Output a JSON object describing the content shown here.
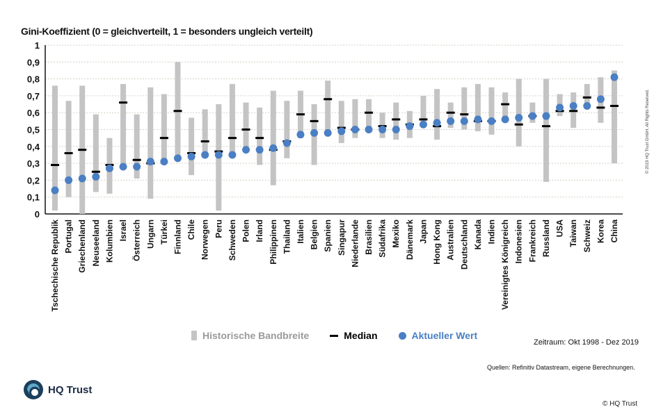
{
  "chart_data": {
    "type": "range-dot",
    "title": "Gini-Koeffizient (0 = gleichverteilt, 1 = besonders ungleich verteilt)",
    "ylim": [
      0,
      1
    ],
    "yticks": [
      "0",
      "0,1",
      "0,2",
      "0,3",
      "0,4",
      "0,5",
      "0,6",
      "0,7",
      "0,8",
      "0,9",
      "1"
    ],
    "grid": true,
    "categories": [
      "Tschechische Republik",
      "Portugal",
      "Griechenland",
      "Neuseeland",
      "Kolumbien",
      "Israel",
      "Österreich",
      "Ungarn",
      "Türkei",
      "Finnland",
      "Chile",
      "Norwegen",
      "Peru",
      "Schweden",
      "Polen",
      "Irland",
      "Philippinen",
      "Thailand",
      "Italien",
      "Belgien",
      "Spanien",
      "Singapur",
      "Niederlande",
      "Brasilien",
      "Südafrika",
      "Mexiko",
      "Dänemark",
      "Japan",
      "Hong Kong",
      "Australien",
      "Deutschland",
      "Kanada",
      "Indien",
      "Vereinigtes Königreich",
      "Indonesien",
      "Frankreich",
      "Russland",
      "USA",
      "Taiwan",
      "Schweiz",
      "Korea",
      "China"
    ],
    "series": [
      {
        "name": "Historische Bandbreite (min)",
        "values": [
          0.02,
          0.1,
          0.0,
          0.13,
          0.12,
          0.29,
          0.21,
          0.09,
          0.3,
          0.33,
          0.23,
          0.34,
          0.02,
          0.35,
          0.37,
          0.29,
          0.17,
          0.33,
          0.45,
          0.29,
          0.48,
          0.42,
          0.45,
          0.49,
          0.45,
          0.44,
          0.45,
          0.52,
          0.44,
          0.51,
          0.5,
          0.49,
          0.47,
          0.55,
          0.4,
          0.54,
          0.19,
          0.58,
          0.51,
          0.64,
          0.54,
          0.3
        ]
      },
      {
        "name": "Historische Bandbreite (max)",
        "values": [
          0.76,
          0.67,
          0.76,
          0.59,
          0.45,
          0.77,
          0.59,
          0.75,
          0.71,
          0.9,
          0.57,
          0.62,
          0.65,
          0.77,
          0.66,
          0.63,
          0.73,
          0.67,
          0.73,
          0.65,
          0.79,
          0.67,
          0.68,
          0.68,
          0.6,
          0.66,
          0.61,
          0.7,
          0.74,
          0.66,
          0.75,
          0.77,
          0.75,
          0.72,
          0.8,
          0.66,
          0.8,
          0.71,
          0.72,
          0.77,
          0.81,
          0.85
        ]
      },
      {
        "name": "Median",
        "values": [
          0.29,
          0.36,
          0.38,
          0.25,
          0.29,
          0.66,
          0.32,
          0.3,
          0.45,
          0.61,
          0.36,
          0.43,
          0.37,
          0.45,
          0.5,
          0.45,
          0.38,
          0.43,
          0.59,
          0.55,
          0.68,
          0.51,
          0.5,
          0.6,
          0.52,
          0.56,
          0.53,
          0.56,
          0.52,
          0.6,
          0.59,
          0.55,
          0.55,
          0.65,
          0.53,
          0.58,
          0.52,
          0.61,
          0.61,
          0.69,
          0.63,
          0.64
        ]
      },
      {
        "name": "Aktueller Wert",
        "values": [
          0.14,
          0.2,
          0.21,
          0.22,
          0.27,
          0.28,
          0.28,
          0.31,
          0.31,
          0.33,
          0.34,
          0.35,
          0.35,
          0.35,
          0.38,
          0.38,
          0.39,
          0.42,
          0.47,
          0.48,
          0.48,
          0.49,
          0.5,
          0.5,
          0.5,
          0.5,
          0.52,
          0.53,
          0.54,
          0.55,
          0.55,
          0.56,
          0.55,
          0.56,
          0.57,
          0.58,
          0.58,
          0.63,
          0.64,
          0.64,
          0.68,
          0.81
        ]
      }
    ],
    "legend": [
      "Historische Bandbreite",
      "Median",
      "Aktueller Wert"
    ],
    "legend_position": "bottom"
  },
  "colors": {
    "band": "#c4c4c4",
    "median": "#000000",
    "current": "#4a7fc4",
    "legend_band_text": "#9a9a9a",
    "legend_current_text": "#4a7fc4"
  },
  "period": "Zeitraum: Okt 1998 - Dez 2019",
  "source": "Quellen: Refinitiv Datastream, eigene Berechnungen.",
  "logo_text": "HQ Trust",
  "copyright_bottom": "© HQ Trust",
  "copyright_vertical": "© 2019 HQ Trust GmbH. All Rights Reserved."
}
